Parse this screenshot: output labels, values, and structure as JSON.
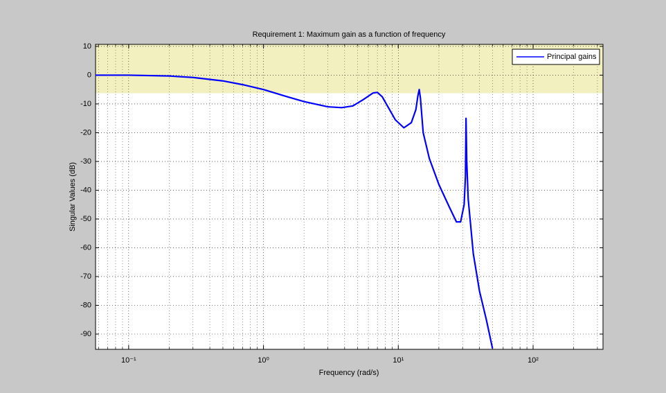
{
  "chart_data": {
    "type": "line",
    "title": "Requirement 1: Maximum gain as a function of frequency",
    "xlabel": "Frequency (rad/s)",
    "ylabel": "Singular Values (dB)",
    "xscale": "log",
    "xlim": [
      0.0568,
      330
    ],
    "ylim": [
      -95.3,
      10.7
    ],
    "xticks": [
      {
        "value": 0.1,
        "label": "10⁻¹"
      },
      {
        "value": 1,
        "label": "10⁰"
      },
      {
        "value": 10,
        "label": "10¹"
      },
      {
        "value": 100,
        "label": "10²"
      }
    ],
    "yticks": [
      10,
      0,
      -10,
      -20,
      -30,
      -40,
      -50,
      -60,
      -70,
      -80,
      -90
    ],
    "grid": true,
    "minor_grid": true,
    "legend": "top-right",
    "requirement_region": {
      "from": -6.3,
      "color": "#f3f0c0"
    },
    "x": [
      0.0568,
      0.1,
      0.2,
      0.3,
      0.5,
      0.7,
      1.0,
      1.5,
      2.0,
      3.0,
      3.8,
      4.6,
      5.5,
      6.5,
      7.0,
      7.6,
      8.5,
      9.5,
      11.0,
      12.5,
      13.5,
      14.0,
      14.3,
      14.6,
      15.3,
      17,
      20,
      24,
      27,
      29,
      30.8,
      31.5,
      31.8,
      32.2,
      33,
      36,
      40,
      45,
      50
    ],
    "series": [
      {
        "name": "Principal gains",
        "color": "#0000ff",
        "values": [
          0,
          0,
          -0.3,
          -0.8,
          -2,
          -3.3,
          -5,
          -7.5,
          -9.2,
          -11,
          -11.3,
          -10.7,
          -8.5,
          -6.2,
          -6,
          -7.5,
          -11.5,
          -15.5,
          -18.3,
          -16.5,
          -12,
          -7,
          -5,
          -8,
          -20,
          -29,
          -38,
          -46,
          -51,
          -51,
          -45,
          -35,
          -15,
          -30,
          -43,
          -62,
          -75,
          -85,
          -95
        ]
      }
    ]
  }
}
